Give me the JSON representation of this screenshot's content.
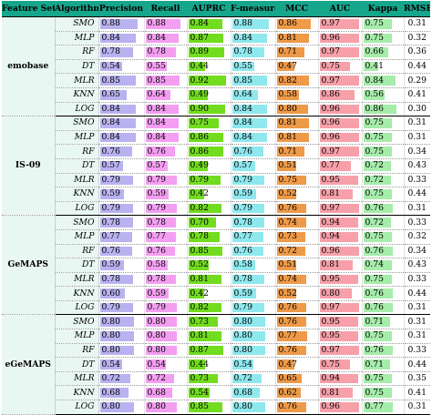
{
  "headers": [
    "Feature Set",
    "Algorithm",
    "Precision",
    "Recall",
    "AUPRC",
    "F-measure",
    "MCC",
    "AUC",
    "Kappa",
    "RMSE"
  ],
  "bar_colors": [
    "#b9b2f0",
    "#f49ef2",
    "#72dc1f",
    "#8ee8ee",
    "#ee9a48",
    "#f7a0aa",
    "#a6ecaa"
  ],
  "groups": [
    {
      "feature_set": "emobase",
      "rows": [
        {
          "alg": "SMO",
          "v": [
            "0.88",
            "0.88",
            "0.84",
            "0.88",
            "0.86",
            "0.97",
            "0.75",
            "0.31"
          ]
        },
        {
          "alg": "MLP",
          "v": [
            "0.84",
            "0.84",
            "0.87",
            "0.84",
            "0.81",
            "0.96",
            "0.75",
            "0.32"
          ]
        },
        {
          "alg": "RF",
          "v": [
            "0.78",
            "0.78",
            "0.89",
            "0.78",
            "0.71",
            "0.97",
            "0.66",
            "0.36"
          ]
        },
        {
          "alg": "DT",
          "v": [
            "0.54",
            "0.55",
            "0.44",
            "0.55",
            "0.47",
            "0.75",
            "0.41",
            "0.44"
          ]
        },
        {
          "alg": "MLR",
          "v": [
            "0.85",
            "0.85",
            "0.92",
            "0.85",
            "0.82",
            "0.97",
            "0.84",
            "0.29"
          ]
        },
        {
          "alg": "KNN",
          "v": [
            "0.65",
            "0.64",
            "0.49",
            "0.64",
            "0.58",
            "0.86",
            "0.56",
            "0.41"
          ]
        },
        {
          "alg": "LOG",
          "v": [
            "0.84",
            "0.84",
            "0.90",
            "0.84",
            "0.80",
            "0.96",
            "0.86",
            "0.30"
          ]
        }
      ]
    },
    {
      "feature_set": "IS-09",
      "rows": [
        {
          "alg": "SMO",
          "v": [
            "0.84",
            "0.84",
            "0.75",
            "0.84",
            "0.81",
            "0.96",
            "0.75",
            "0.31"
          ]
        },
        {
          "alg": "MLP",
          "v": [
            "0.84",
            "0.84",
            "0.86",
            "0.84",
            "0.81",
            "0.96",
            "0.75",
            "0.31"
          ]
        },
        {
          "alg": "RF",
          "v": [
            "0.76",
            "0.76",
            "0.86",
            "0.76",
            "0.71",
            "0.97",
            "0.75",
            "0.34"
          ]
        },
        {
          "alg": "DT",
          "v": [
            "0.57",
            "0.57",
            "0.49",
            "0.57",
            "0.51",
            "0.77",
            "0.72",
            "0.43"
          ]
        },
        {
          "alg": "MLR",
          "v": [
            "0.79",
            "0.79",
            "0.79",
            "0.79",
            "0.75",
            "0.95",
            "0.72",
            "0.33"
          ]
        },
        {
          "alg": "KNN",
          "v": [
            "0.59",
            "0.59",
            "0.42",
            "0.59",
            "0.52",
            "0.81",
            "0.75",
            "0.44"
          ]
        },
        {
          "alg": "LOG",
          "v": [
            "0.79",
            "0.79",
            "0.82",
            "0.79",
            "0.76",
            "0.97",
            "0.76",
            "0.31"
          ]
        }
      ]
    },
    {
      "feature_set": "GeMAPS",
      "rows": [
        {
          "alg": "SMO",
          "v": [
            "0.78",
            "0.78",
            "0.70",
            "0.78",
            "0.74",
            "0.94",
            "0.72",
            "0.33"
          ]
        },
        {
          "alg": "MLP",
          "v": [
            "0.77",
            "0.77",
            "0.78",
            "0.77",
            "0.73",
            "0.94",
            "0.75",
            "0.32"
          ]
        },
        {
          "alg": "RF",
          "v": [
            "0.76",
            "0.76",
            "0.85",
            "0.76",
            "0.72",
            "0.96",
            "0.76",
            "0.34"
          ]
        },
        {
          "alg": "DT",
          "v": [
            "0.59",
            "0.58",
            "0.52",
            "0.58",
            "0.51",
            "0.81",
            "0.74",
            "0.43"
          ]
        },
        {
          "alg": "MLR",
          "v": [
            "0.78",
            "0.78",
            "0.81",
            "0.78",
            "0.74",
            "0.95",
            "0.75",
            "0.33"
          ]
        },
        {
          "alg": "KNN",
          "v": [
            "0.60",
            "0.59",
            "0.42",
            "0.59",
            "0.52",
            "0.80",
            "0.76",
            "0.44"
          ]
        },
        {
          "alg": "LOG",
          "v": [
            "0.79",
            "0.79",
            "0.82",
            "0.79",
            "0.76",
            "0.97",
            "0.76",
            "0.31"
          ]
        }
      ]
    },
    {
      "feature_set": "eGeMAPS",
      "rows": [
        {
          "alg": "SMO",
          "v": [
            "0.80",
            "0.80",
            "0.73",
            "0.80",
            "0.76",
            "0.95",
            "0.71",
            "0.31"
          ]
        },
        {
          "alg": "MLP",
          "v": [
            "0.80",
            "0.80",
            "0.81",
            "0.80",
            "0.77",
            "0.95",
            "0.75",
            "0.31"
          ]
        },
        {
          "alg": "RF",
          "v": [
            "0.80",
            "0.80",
            "0.87",
            "0.80",
            "0.76",
            "0.97",
            "0.76",
            "0.33"
          ]
        },
        {
          "alg": "DT",
          "v": [
            "0.54",
            "0.54",
            "0.44",
            "0.54",
            "0.47",
            "0.75",
            "0.71",
            "0.44"
          ]
        },
        {
          "alg": "MLR",
          "v": [
            "0.72",
            "0.72",
            "0.73",
            "0.72",
            "0.65",
            "0.94",
            "0.75",
            "0.35"
          ]
        },
        {
          "alg": "KNN",
          "v": [
            "0.68",
            "0.68",
            "0.54",
            "0.68",
            "0.62",
            "0.81",
            "0.75",
            "0.41"
          ]
        },
        {
          "alg": "LOG",
          "v": [
            "0.80",
            "0.80",
            "0.85",
            "0.80",
            "0.76",
            "0.96",
            "0.77",
            "0.31"
          ]
        }
      ]
    }
  ]
}
